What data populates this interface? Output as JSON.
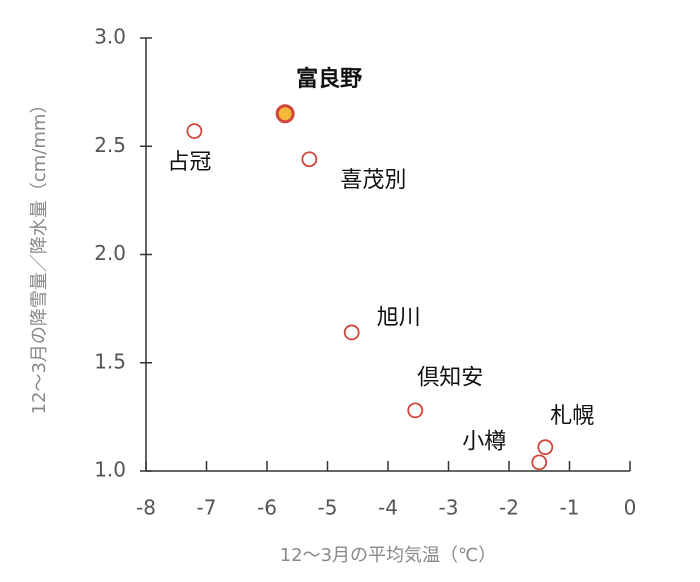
{
  "chart_data": {
    "type": "scatter",
    "x_label": "12～3月の平均気温（℃）",
    "y_label": "12～3月の降雪量／降水量（cm/mm）",
    "labels": [
      "占冠",
      "富良野",
      "喜茂別",
      "旭川",
      "倶知安",
      "札幌",
      "小樽"
    ],
    "x": [
      -7.2,
      -5.7,
      -5.3,
      -4.6,
      -3.55,
      -1.4,
      -1.5
    ],
    "values": [
      2.57,
      2.65,
      2.44,
      1.64,
      1.28,
      1.11,
      1.04
    ],
    "marker_fill": [
      "#ffffff",
      "#f5b93a",
      "#ffffff",
      "#ffffff",
      "#ffffff",
      "#ffffff",
      "#ffffff"
    ],
    "label_weight": [
      "normal",
      "bold",
      "normal",
      "normal",
      "normal",
      "normal",
      "normal"
    ],
    "color": "#d0463a",
    "xlim": [
      -8,
      0
    ],
    "xticks": [
      -8,
      -7,
      -6,
      -5,
      -4,
      -3,
      -2,
      -1,
      0
    ],
    "ylim": [
      1,
      3
    ],
    "yticks": [
      {
        "value": 1,
        "label": "1.0"
      },
      {
        "value": 1.5,
        "label": "1.5"
      },
      {
        "value": 2,
        "label": "2.0"
      },
      {
        "value": 2.5,
        "label": "2.5"
      },
      {
        "value": 3,
        "label": "3.0"
      }
    ]
  }
}
